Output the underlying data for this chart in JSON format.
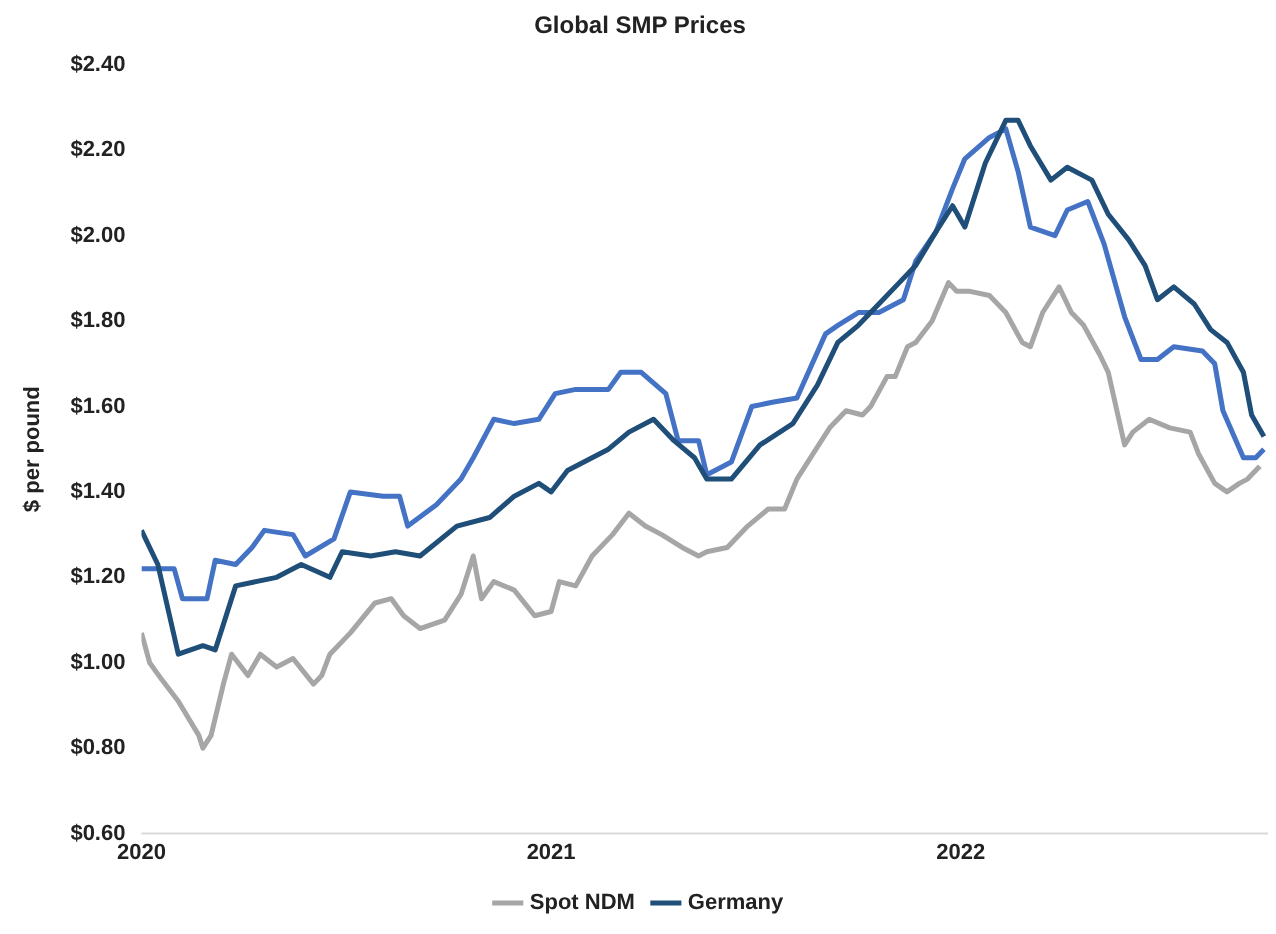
{
  "chart_data": {
    "type": "line",
    "title": "Global SMP Prices",
    "ylabel": "$ per pound",
    "xlim": [
      2020,
      2022.75
    ],
    "xticks": [
      2020,
      2021,
      2022
    ],
    "ylim": [
      0.6,
      2.4
    ],
    "yticks": [
      {
        "value": 0.6,
        "label": "$0.60"
      },
      {
        "value": 0.8,
        "label": "$0.80"
      },
      {
        "value": 1.0,
        "label": "$1.00"
      },
      {
        "value": 1.2,
        "label": "$1.20"
      },
      {
        "value": 1.4,
        "label": "$1.40"
      },
      {
        "value": 1.6,
        "label": "$1.60"
      },
      {
        "value": 1.8,
        "label": "$1.80"
      },
      {
        "value": 2.0,
        "label": "$2.00"
      },
      {
        "value": 2.2,
        "label": "$2.20"
      },
      {
        "value": 2.4,
        "label": "$2.40"
      }
    ],
    "grid": false,
    "legend": "bottom",
    "marker": "none",
    "line_style": "solid",
    "series": [
      {
        "name": "Spot NDM",
        "color": "#a6a6a6",
        "x": [
          2020.0,
          2020.02,
          2020.05,
          2020.09,
          2020.14,
          2020.15,
          2020.17,
          2020.2,
          2020.22,
          2020.26,
          2020.29,
          2020.33,
          2020.37,
          2020.42,
          2020.44,
          2020.46,
          2020.51,
          2020.57,
          2020.61,
          2020.64,
          2020.68,
          2020.74,
          2020.78,
          2020.81,
          2020.83,
          2020.86,
          2020.91,
          2020.96,
          2021.0,
          2021.02,
          2021.06,
          2021.1,
          2021.15,
          2021.19,
          2021.23,
          2021.27,
          2021.32,
          2021.36,
          2021.38,
          2021.43,
          2021.48,
          2021.53,
          2021.57,
          2021.6,
          2021.64,
          2021.68,
          2021.72,
          2021.76,
          2021.78,
          2021.82,
          2021.84,
          2021.87,
          2021.89,
          2021.93,
          2021.97,
          2021.99,
          2022.02,
          2022.07,
          2022.11,
          2022.15,
          2022.17,
          2022.2,
          2022.24,
          2022.27,
          2022.3,
          2022.34,
          2022.36,
          2022.4,
          2022.42,
          2022.46,
          2022.51,
          2022.56,
          2022.58,
          2022.62,
          2022.65,
          2022.68,
          2022.7,
          2022.73
        ],
        "values": [
          1.07,
          1.0,
          0.96,
          0.91,
          0.83,
          0.8,
          0.83,
          0.95,
          1.02,
          0.97,
          1.02,
          0.99,
          1.01,
          0.95,
          0.97,
          1.02,
          1.07,
          1.14,
          1.15,
          1.11,
          1.08,
          1.1,
          1.16,
          1.25,
          1.15,
          1.19,
          1.17,
          1.11,
          1.12,
          1.19,
          1.18,
          1.25,
          1.3,
          1.35,
          1.32,
          1.3,
          1.27,
          1.25,
          1.26,
          1.27,
          1.32,
          1.36,
          1.36,
          1.43,
          1.49,
          1.55,
          1.59,
          1.58,
          1.6,
          1.67,
          1.67,
          1.74,
          1.75,
          1.8,
          1.89,
          1.87,
          1.87,
          1.86,
          1.82,
          1.75,
          1.74,
          1.82,
          1.88,
          1.82,
          1.79,
          1.72,
          1.68,
          1.51,
          1.54,
          1.57,
          1.55,
          1.54,
          1.49,
          1.42,
          1.4,
          1.42,
          1.43,
          1.46
        ]
      },
      {
        "name": "Germany",
        "color": "#1f4e79",
        "x": [
          2020.0,
          2020.04,
          2020.09,
          2020.15,
          2020.18,
          2020.23,
          2020.33,
          2020.39,
          2020.46,
          2020.49,
          2020.56,
          2020.62,
          2020.68,
          2020.77,
          2020.85,
          2020.91,
          2020.97,
          2021.0,
          2021.04,
          2021.14,
          2021.19,
          2021.25,
          2021.3,
          2021.35,
          2021.38,
          2021.44,
          2021.51,
          2021.59,
          2021.65,
          2021.7,
          2021.75,
          2021.8,
          2021.85,
          2021.89,
          2021.94,
          2021.98,
          2022.01,
          2022.06,
          2022.11,
          2022.14,
          2022.17,
          2022.22,
          2022.26,
          2022.32,
          2022.36,
          2022.41,
          2022.45,
          2022.48,
          2022.52,
          2022.57,
          2022.61,
          2022.65,
          2022.69,
          2022.71,
          2022.74
        ],
        "values": [
          1.31,
          1.23,
          1.02,
          1.04,
          1.03,
          1.18,
          1.2,
          1.23,
          1.2,
          1.26,
          1.25,
          1.26,
          1.25,
          1.32,
          1.34,
          1.39,
          1.42,
          1.4,
          1.45,
          1.5,
          1.54,
          1.57,
          1.52,
          1.48,
          1.43,
          1.43,
          1.51,
          1.56,
          1.65,
          1.75,
          1.79,
          1.84,
          1.89,
          1.93,
          2.01,
          2.07,
          2.02,
          2.17,
          2.27,
          2.27,
          2.21,
          2.13,
          2.16,
          2.13,
          2.05,
          1.99,
          1.93,
          1.85,
          1.88,
          1.84,
          1.78,
          1.75,
          1.68,
          1.58,
          1.53
        ]
      },
      {
        "color": "#4472c4",
        "x": [
          2020.0,
          2020.08,
          2020.1,
          2020.16,
          2020.18,
          2020.23,
          2020.27,
          2020.3,
          2020.37,
          2020.4,
          2020.47,
          2020.51,
          2020.59,
          2020.63,
          2020.65,
          2020.72,
          2020.78,
          2020.81,
          2020.86,
          2020.91,
          2020.97,
          2021.01,
          2021.06,
          2021.14,
          2021.17,
          2021.22,
          2021.28,
          2021.31,
          2021.36,
          2021.38,
          2021.44,
          2021.49,
          2021.54,
          2021.6,
          2021.67,
          2021.7,
          2021.75,
          2021.8,
          2021.86,
          2021.89,
          2021.94,
          2021.98,
          2022.01,
          2022.07,
          2022.11,
          2022.14,
          2022.17,
          2022.23,
          2022.26,
          2022.31,
          2022.35,
          2022.4,
          2022.44,
          2022.48,
          2022.52,
          2022.59,
          2022.62,
          2022.64,
          2022.69,
          2022.72,
          2022.74
        ],
        "values": [
          1.22,
          1.22,
          1.15,
          1.15,
          1.24,
          1.23,
          1.27,
          1.31,
          1.3,
          1.25,
          1.29,
          1.4,
          1.39,
          1.39,
          1.32,
          1.37,
          1.43,
          1.48,
          1.57,
          1.56,
          1.57,
          1.63,
          1.64,
          1.64,
          1.68,
          1.68,
          1.63,
          1.52,
          1.52,
          1.44,
          1.47,
          1.6,
          1.61,
          1.62,
          1.77,
          1.79,
          1.82,
          1.82,
          1.85,
          1.94,
          2.01,
          2.11,
          2.18,
          2.23,
          2.25,
          2.15,
          2.02,
          2.0,
          2.06,
          2.08,
          1.98,
          1.81,
          1.71,
          1.71,
          1.74,
          1.73,
          1.7,
          1.59,
          1.48,
          1.48,
          1.5
        ]
      }
    ]
  }
}
